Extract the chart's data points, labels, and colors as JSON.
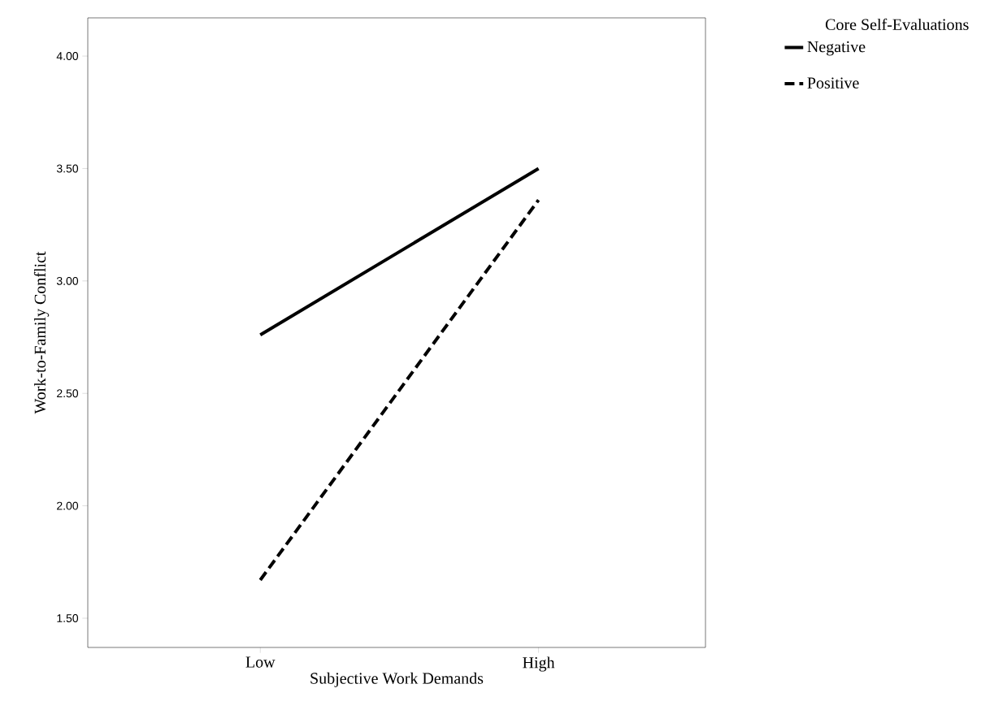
{
  "chart_data": {
    "type": "line",
    "xlabel": "Subjective Work Demands",
    "ylabel": "Work-to-Family Conflict",
    "legend_title": "Core Self-Evaluations",
    "categories": [
      "Low",
      "High"
    ],
    "series": [
      {
        "name": "Negative",
        "color": "#000000",
        "values": [
          2.76,
          3.5
        ],
        "line_style": "solid"
      },
      {
        "name": "Positive",
        "color": "#000000",
        "values": [
          1.67,
          3.36
        ],
        "line_style": "dashed"
      }
    ],
    "ylim": [
      1.37,
      4.17
    ],
    "yticks": [
      {
        "value": 1.5,
        "label": "1.50"
      },
      {
        "value": 2.0,
        "label": "2.00"
      },
      {
        "value": 2.5,
        "label": "2.50"
      },
      {
        "value": 3.0,
        "label": "3.00"
      },
      {
        "value": 3.5,
        "label": "3.50"
      },
      {
        "value": 4.0,
        "label": "4.00"
      }
    ],
    "grid": false,
    "legend": "top right",
    "marker": "none"
  }
}
